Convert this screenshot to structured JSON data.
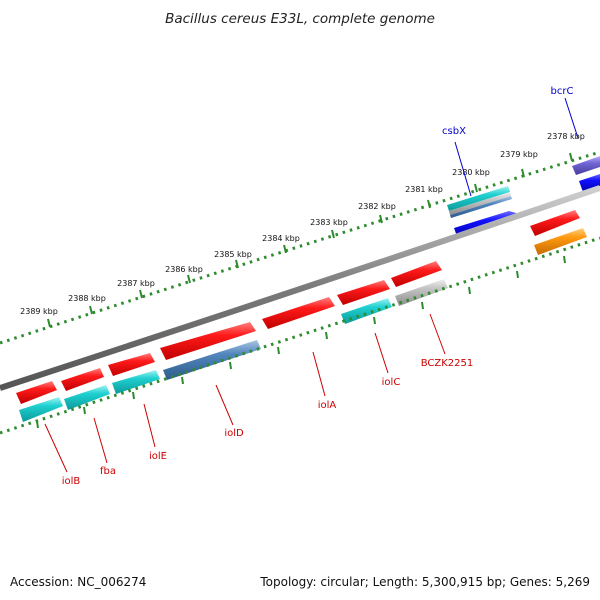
{
  "title": "Bacillus cereus E33L, complete genome",
  "footer": {
    "accession": "Accession: NC_006274",
    "topology": "Topology: circular; Length: 5,300,915 bp; Genes: 5,269"
  },
  "colors": {
    "backbone": "#7f7f7f",
    "tick_track": "#2e8b2e",
    "label_red": "#cc0000",
    "label_blue": "#0000cc",
    "gene_red": "#ee1111",
    "gene_cyan": "#14c7c7",
    "gene_steelblue": "#4a7fb5",
    "gene_blue": "#0a0af0",
    "gene_gray": "#bdbdbd",
    "gene_orange": "#ff8c00",
    "gene_purple": "#6a5acd"
  },
  "ticks": [
    "2389 kbp",
    "2388 kbp",
    "2387 kbp",
    "2386 kbp",
    "2385 kbp",
    "2384 kbp",
    "2383 kbp",
    "2382 kbp",
    "2381 kbp",
    "2380 kbp",
    "2379 kbp",
    "2378 kbp"
  ],
  "labels": {
    "iolB": "iolB",
    "fba": "fba",
    "iolE": "iolE",
    "iolD": "iolD",
    "iolA": "iolA",
    "iolC": "iolC",
    "BCZK2251": "BCZK2251",
    "csbX": "csbX",
    "bcrC": "bcrC"
  }
}
